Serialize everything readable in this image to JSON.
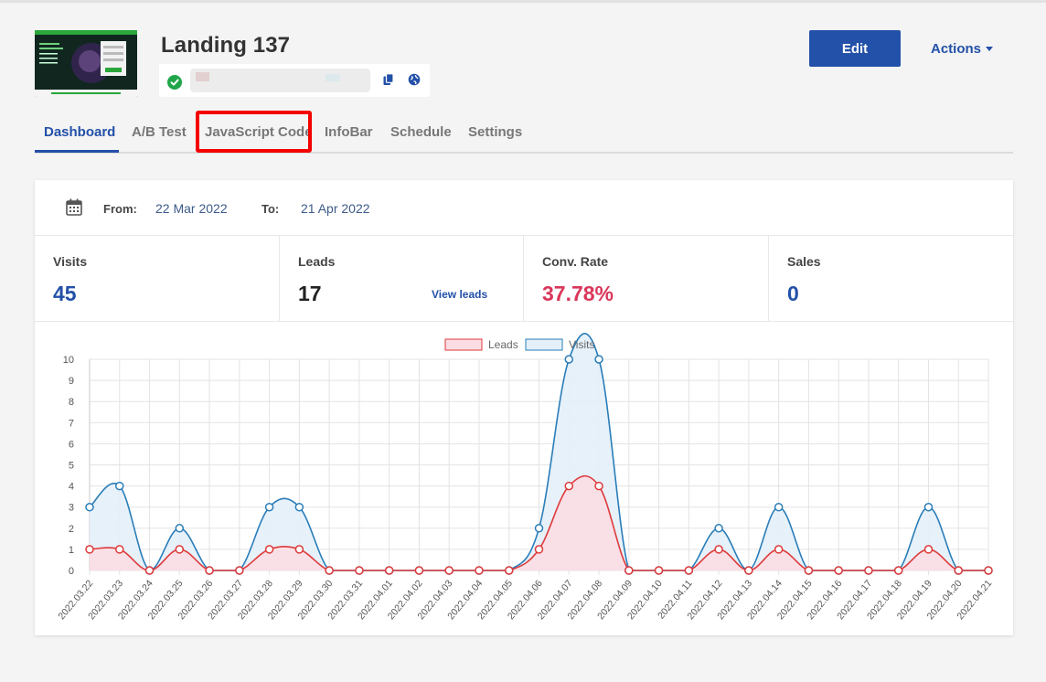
{
  "landing": {
    "title": "Landing 137",
    "status": "published"
  },
  "header": {
    "edit_label": "Edit",
    "actions_label": "Actions"
  },
  "tabs": [
    {
      "label": "Dashboard",
      "active": true
    },
    {
      "label": "A/B Test",
      "active": false
    },
    {
      "label": "JavaScript Code",
      "active": false,
      "highlighted": true
    },
    {
      "label": "InfoBar",
      "active": false
    },
    {
      "label": "Schedule",
      "active": false
    },
    {
      "label": "Settings",
      "active": false
    }
  ],
  "date_range": {
    "from_label": "From:",
    "from_value": "22 Mar 2022",
    "to_label": "To:",
    "to_value": "21 Apr 2022"
  },
  "stats": {
    "visits": {
      "label": "Visits",
      "value": "45",
      "color": "#2350a8"
    },
    "leads": {
      "label": "Leads",
      "value": "17",
      "link": "View leads",
      "color": "#222222"
    },
    "conv_rate": {
      "label": "Conv. Rate",
      "value": "37.78%",
      "color": "#d9365a"
    },
    "sales": {
      "label": "Sales",
      "value": "0",
      "color": "#2350a8"
    }
  },
  "colors": {
    "accent": "#2350a8",
    "leads_line": "#de3a3a",
    "leads_fill": "#fbdde3",
    "visits_line": "#2a7db8",
    "visits_fill": "#e3eff9"
  },
  "chart_data": {
    "type": "area",
    "x": [
      "2022.03.22",
      "2022.03.23",
      "2022.03.24",
      "2022.03.25",
      "2022.03.26",
      "2022.03.27",
      "2022.03.28",
      "2022.03.29",
      "2022.03.30",
      "2022.03.31",
      "2022.04.01",
      "2022.04.02",
      "2022.04.03",
      "2022.04.04",
      "2022.04.05",
      "2022.04.06",
      "2022.04.07",
      "2022.04.08",
      "2022.04.09",
      "2022.04.10",
      "2022.04.11",
      "2022.04.12",
      "2022.04.13",
      "2022.04.14",
      "2022.04.15",
      "2022.04.16",
      "2022.04.17",
      "2022.04.18",
      "2022.04.19",
      "2022.04.20",
      "2022.04.21"
    ],
    "series": [
      {
        "name": "Leads",
        "values": [
          1,
          1,
          0,
          1,
          0,
          0,
          1,
          1,
          0,
          0,
          0,
          0,
          0,
          0,
          0,
          1,
          4,
          4,
          0,
          0,
          0,
          1,
          0,
          1,
          0,
          0,
          0,
          0,
          1,
          0,
          0
        ]
      },
      {
        "name": "Visits",
        "values": [
          3,
          4,
          0,
          2,
          0,
          0,
          3,
          3,
          0,
          0,
          0,
          0,
          0,
          0,
          0,
          2,
          10,
          10,
          0,
          0,
          0,
          2,
          0,
          3,
          0,
          0,
          0,
          0,
          3,
          0,
          0
        ]
      }
    ],
    "ylim": [
      0,
      10
    ],
    "yticks": [
      0,
      1,
      2,
      3,
      4,
      5,
      6,
      7,
      8,
      9,
      10
    ],
    "grid": true,
    "legend": "top-center"
  }
}
